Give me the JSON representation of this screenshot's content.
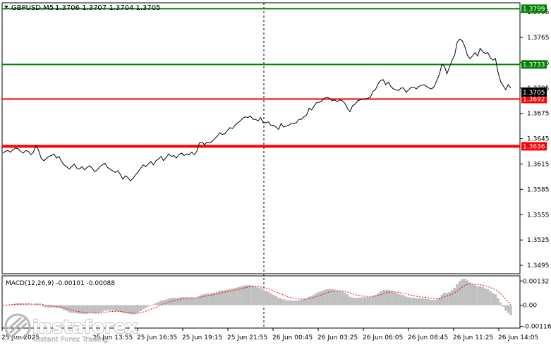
{
  "header": {
    "symbol": "GBPUSD,M5",
    "ohlc": "1.3706 1.3707 1.3704 1.3705"
  },
  "chart_data": [
    {
      "type": "line",
      "title": "GBPUSD,M5",
      "yticks": [
        1.3795,
        1.3765,
        1.3735,
        1.3705,
        1.3675,
        1.3645,
        1.3615,
        1.3585,
        1.3555,
        1.3525,
        1.3495
      ],
      "ylim": [
        1.3485,
        1.3806
      ],
      "xticks": [
        "25 Jun 2025",
        "25 Jun 13:55",
        "25 Jun 16:35",
        "25 Jun 19:15",
        "25 Jun 21:55",
        "26 Jun 00:45",
        "26 Jun 03:25",
        "26 Jun 06:05",
        "26 Jun 08:45",
        "26 Jun 11:25",
        "26 Jun 14:05"
      ],
      "levels": [
        {
          "value": "1.3799",
          "color": "#008000",
          "kind": "green"
        },
        {
          "value": "1.3733",
          "color": "#008000",
          "kind": "green"
        },
        {
          "value": "1.3692",
          "color": "#ff0000",
          "kind": "red"
        },
        {
          "value": "1.3636",
          "color": "#ff0000",
          "kind": "red"
        }
      ],
      "current_price": "1.3705",
      "series": [
        {
          "values": [
            1.3628,
            1.363,
            1.3631,
            1.3629,
            1.3632,
            1.3634,
            1.3633,
            1.363,
            1.3628,
            1.3631,
            1.363,
            1.3626,
            1.3629,
            1.3637,
            1.3631,
            1.3622,
            1.3619,
            1.3621,
            1.3624,
            1.3625,
            1.3627,
            1.3622,
            1.3624,
            1.3618,
            1.3614,
            1.3612,
            1.3609,
            1.3612,
            1.3615,
            1.361,
            1.3609,
            1.3612,
            1.3608,
            1.3611,
            1.3613,
            1.361,
            1.3606,
            1.3608,
            1.3612,
            1.3614,
            1.3616,
            1.3611,
            1.3609,
            1.3607,
            1.3605,
            1.3607,
            1.3603,
            1.3597,
            1.3601,
            1.3599,
            1.3595,
            1.3598,
            1.3602,
            1.3606,
            1.361,
            1.3614,
            1.3612,
            1.3615,
            1.3618,
            1.3614,
            1.3619,
            1.3621,
            1.3624,
            1.3619,
            1.3623,
            1.3627,
            1.3624,
            1.3625,
            1.3622,
            1.3626,
            1.3628,
            1.3625,
            1.3627,
            1.3626,
            1.3629,
            1.3626,
            1.363,
            1.364,
            1.3641,
            1.3638,
            1.3641,
            1.364,
            1.3642,
            1.3645,
            1.3648,
            1.3652,
            1.365,
            1.3651,
            1.3655,
            1.3658,
            1.3657,
            1.3661,
            1.3664,
            1.3666,
            1.3669,
            1.3671,
            1.367,
            1.3672,
            1.3668,
            1.3668,
            1.3666,
            1.367,
            1.3664,
            1.3664,
            1.3665,
            1.3661,
            1.3661,
            1.3659,
            1.3656,
            1.3663,
            1.3659,
            1.366,
            1.3661,
            1.3663,
            1.3663,
            1.3664,
            1.3668,
            1.3668,
            1.3671,
            1.3673,
            1.3681,
            1.3679,
            1.3684,
            1.3688,
            1.3688,
            1.369,
            1.3693,
            1.3694,
            1.3693,
            1.369,
            1.3691,
            1.3689,
            1.3691,
            1.369,
            1.3687,
            1.3681,
            1.3677,
            1.3684,
            1.3686,
            1.369,
            1.3691,
            1.3692,
            1.3692,
            1.3693,
            1.3694,
            1.3701,
            1.3703,
            1.371,
            1.3714,
            1.3715,
            1.3709,
            1.3712,
            1.3707,
            1.3704,
            1.3703,
            1.3702,
            1.3705,
            1.3705,
            1.37,
            1.3703,
            1.3706,
            1.3706,
            1.3704,
            1.3707,
            1.3708,
            1.3709,
            1.3707,
            1.3705,
            1.3704,
            1.3707,
            1.3714,
            1.3721,
            1.3733,
            1.3731,
            1.3722,
            1.373,
            1.3738,
            1.3744,
            1.3759,
            1.3763,
            1.3761,
            1.3754,
            1.3744,
            1.374,
            1.3743,
            1.3747,
            1.3743,
            1.3752,
            1.3748,
            1.3746,
            1.3747,
            1.3741,
            1.3738,
            1.374,
            1.3724,
            1.3713,
            1.3708,
            1.3703,
            1.3709,
            1.3705
          ]
        }
      ]
    },
    {
      "type": "bar",
      "title": "MACD(12,26,9)",
      "label": "MACD(12,26,9) -0.00101 -0.00088",
      "yticks": [
        "0.00132",
        "0.00",
        "-0.00116"
      ],
      "tick_values": [
        0.00132,
        0.0,
        -0.00116
      ],
      "ylim": [
        -0.00125,
        0.0016
      ]
    }
  ],
  "watermark": {
    "brand": "instaforex",
    "tagline": "Instant Forex Trading"
  }
}
